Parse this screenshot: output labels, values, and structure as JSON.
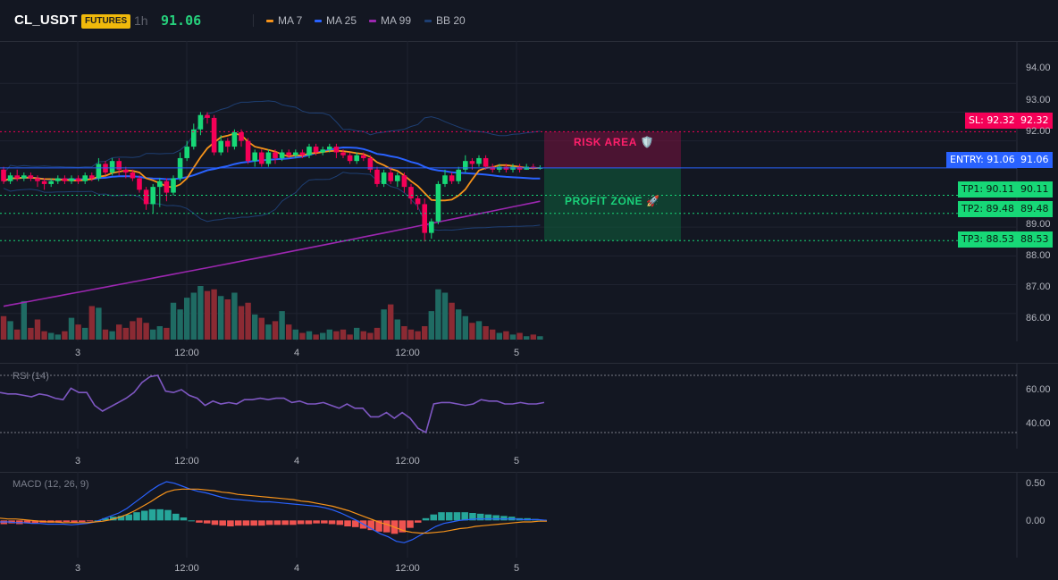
{
  "header": {
    "symbol": "CL_USDT",
    "market_badge": "FUTURES",
    "timeframe": "1h",
    "last_price": "91.06",
    "legend": [
      {
        "label": "MA 7",
        "color": "#f7931a"
      },
      {
        "label": "MA 25",
        "color": "#2962ff"
      },
      {
        "label": "MA 99",
        "color": "#9c27b0"
      },
      {
        "label": "BB 20",
        "color": "#1e3f73"
      }
    ]
  },
  "colors": {
    "background": "#131722",
    "up_candle": "#26a69a",
    "up_bright": "#17d877",
    "down_candle": "#f23645",
    "down_bright": "#f50057",
    "grid": "#1f2330",
    "rsi_line": "#7e57c2",
    "macd_line": "#2962ff",
    "signal_line": "#f7931a",
    "hist_pos": "#26a69a",
    "hist_neg": "#ef5350"
  },
  "price_axis": {
    "range": [
      85.4,
      94.6
    ],
    "ticks": [
      "94.00",
      "93.00",
      "92.00",
      "89.00",
      "88.00",
      "87.00",
      "86.00"
    ]
  },
  "time_axis": {
    "ticks": [
      "3",
      "12:00",
      "4",
      "12:00",
      "5"
    ]
  },
  "trade_levels": {
    "sl": {
      "label": "SL: 92.32",
      "axis_value": "92.32",
      "value": 92.32
    },
    "entry": {
      "label": "ENTRY: 91.06",
      "axis_value": "91.06",
      "value": 91.06
    },
    "tp1": {
      "label": "TP1: 90.11",
      "axis_value": "90.11",
      "value": 90.11
    },
    "tp2": {
      "label": "TP2: 89.48",
      "axis_value": "89.48",
      "value": 89.48
    },
    "tp3": {
      "label": "TP3: 88.53",
      "axis_value": "88.53",
      "value": 88.53
    }
  },
  "zones": {
    "risk_label": "RISK AREA 🛡️",
    "profit_label": "PROFIT ZONE 🚀"
  },
  "rsi": {
    "title": "RSI (14)",
    "range": [
      25,
      75
    ],
    "ticks": [
      "60.00",
      "40.00"
    ],
    "upper_band": 70,
    "lower_band": 30
  },
  "macd": {
    "title": "MACD (12, 26, 9)",
    "range": [
      -0.38,
      0.58
    ],
    "ticks": [
      "0.50",
      "0.00"
    ]
  },
  "chart_data": {
    "type": "candlestick",
    "candles": [
      [
        91.0,
        90.6,
        91.1,
        90.5
      ],
      [
        90.6,
        90.8,
        90.9,
        90.5
      ],
      [
        90.8,
        90.7,
        91.0,
        90.6
      ],
      [
        90.7,
        90.8,
        90.9,
        90.6
      ],
      [
        90.8,
        90.7,
        90.9,
        90.6
      ],
      [
        90.7,
        90.6,
        90.8,
        90.4
      ],
      [
        90.6,
        90.5,
        90.7,
        90.3
      ],
      [
        90.5,
        90.6,
        90.7,
        90.4
      ],
      [
        90.6,
        90.7,
        90.8,
        90.5
      ],
      [
        90.7,
        90.6,
        90.8,
        90.5
      ],
      [
        90.6,
        90.7,
        90.8,
        90.5
      ],
      [
        90.7,
        90.6,
        90.8,
        90.5
      ],
      [
        90.6,
        90.8,
        90.9,
        90.5
      ],
      [
        90.8,
        90.7,
        90.9,
        90.6
      ],
      [
        90.7,
        91.2,
        91.4,
        90.6
      ],
      [
        91.2,
        90.9,
        91.3,
        90.8
      ],
      [
        90.9,
        91.3,
        91.4,
        90.8
      ],
      [
        91.3,
        91.0,
        91.4,
        90.8
      ],
      [
        91.0,
        90.9,
        91.1,
        90.7
      ],
      [
        90.9,
        90.7,
        91.0,
        90.6
      ],
      [
        90.7,
        90.3,
        90.8,
        90.2
      ],
      [
        90.3,
        89.8,
        90.4,
        89.6
      ],
      [
        89.8,
        90.4,
        90.5,
        89.5
      ],
      [
        90.4,
        90.6,
        90.7,
        89.7
      ],
      [
        90.6,
        90.2,
        90.7,
        89.9
      ],
      [
        90.2,
        90.7,
        90.8,
        90.1
      ],
      [
        90.7,
        91.4,
        91.6,
        90.6
      ],
      [
        91.4,
        91.8,
        92.0,
        91.3
      ],
      [
        91.8,
        92.4,
        92.6,
        91.7
      ],
      [
        92.4,
        92.9,
        93.0,
        92.2
      ],
      [
        92.9,
        92.8,
        93.0,
        92.6
      ],
      [
        92.8,
        91.6,
        92.9,
        91.5
      ],
      [
        91.6,
        92.0,
        92.2,
        91.5
      ],
      [
        92.0,
        91.8,
        92.1,
        91.6
      ],
      [
        91.8,
        92.3,
        92.4,
        91.7
      ],
      [
        92.3,
        92.0,
        92.4,
        91.8
      ],
      [
        92.0,
        91.3,
        92.1,
        91.2
      ],
      [
        91.3,
        91.6,
        91.7,
        91.1
      ],
      [
        91.6,
        91.2,
        91.7,
        91.1
      ],
      [
        91.2,
        91.6,
        91.7,
        91.1
      ],
      [
        91.6,
        91.4,
        91.7,
        91.2
      ],
      [
        91.4,
        91.6,
        91.7,
        91.3
      ],
      [
        91.6,
        91.5,
        91.7,
        91.4
      ],
      [
        91.5,
        91.6,
        91.7,
        91.4
      ],
      [
        91.6,
        91.5,
        91.7,
        91.4
      ],
      [
        91.5,
        91.8,
        91.9,
        91.4
      ],
      [
        91.8,
        91.6,
        91.9,
        91.5
      ],
      [
        91.6,
        91.7,
        91.8,
        91.5
      ],
      [
        91.7,
        91.8,
        91.9,
        91.6
      ],
      [
        91.8,
        91.6,
        91.9,
        91.4
      ],
      [
        91.6,
        91.5,
        91.7,
        91.4
      ],
      [
        91.5,
        91.3,
        91.6,
        91.2
      ],
      [
        91.3,
        91.5,
        91.6,
        91.2
      ],
      [
        91.5,
        91.4,
        91.6,
        91.3
      ],
      [
        91.4,
        91.0,
        91.5,
        90.9
      ],
      [
        91.0,
        90.5,
        91.1,
        90.4
      ],
      [
        90.5,
        90.9,
        91.0,
        90.4
      ],
      [
        90.9,
        90.6,
        91.1,
        90.5
      ],
      [
        90.6,
        90.8,
        90.9,
        90.4
      ],
      [
        90.8,
        90.4,
        90.9,
        90.2
      ],
      [
        90.4,
        90.0,
        90.5,
        89.8
      ],
      [
        90.0,
        89.8,
        90.1,
        89.6
      ],
      [
        89.8,
        88.8,
        90.0,
        88.5
      ],
      [
        88.8,
        89.2,
        89.3,
        88.6
      ],
      [
        89.2,
        90.5,
        90.6,
        89.1
      ],
      [
        90.5,
        90.8,
        91.0,
        90.4
      ],
      [
        90.8,
        90.6,
        90.9,
        90.5
      ],
      [
        90.6,
        91.0,
        91.1,
        90.5
      ],
      [
        91.0,
        91.3,
        91.5,
        90.9
      ],
      [
        91.3,
        91.2,
        91.4,
        91.0
      ],
      [
        91.2,
        91.4,
        91.5,
        91.1
      ],
      [
        91.4,
        91.1,
        91.5,
        91.0
      ],
      [
        91.1,
        91.0,
        91.2,
        90.9
      ],
      [
        91.0,
        91.1,
        91.2,
        90.9
      ],
      [
        91.1,
        91.0,
        91.2,
        90.9
      ],
      [
        91.0,
        91.1,
        91.2,
        90.9
      ],
      [
        91.1,
        91.0,
        91.2,
        90.9
      ],
      [
        91.0,
        91.1,
        91.2,
        91.0
      ],
      [
        91.1,
        91.05,
        91.2,
        91.0
      ],
      [
        91.05,
        91.06,
        91.15,
        91.0
      ]
    ],
    "volume": [
      28,
      22,
      12,
      46,
      14,
      24,
      10,
      8,
      6,
      10,
      26,
      18,
      14,
      40,
      38,
      12,
      10,
      18,
      14,
      22,
      26,
      20,
      12,
      16,
      14,
      44,
      36,
      50,
      56,
      64,
      58,
      60,
      52,
      48,
      56,
      40,
      44,
      30,
      26,
      18,
      22,
      34,
      18,
      12,
      8,
      10,
      6,
      8,
      12,
      10,
      12,
      6,
      14,
      10,
      8,
      14,
      36,
      42,
      24,
      16,
      12,
      10,
      16,
      34,
      60,
      56,
      44,
      36,
      28,
      20,
      22,
      16,
      12,
      8,
      10,
      6,
      8,
      4,
      6,
      4
    ],
    "rsi": [
      58,
      57,
      57,
      56,
      55,
      57,
      56,
      54,
      53,
      61,
      58,
      58,
      49,
      45,
      48,
      51,
      54,
      58,
      65,
      69,
      70,
      59,
      58,
      60,
      56,
      54,
      49,
      52,
      50,
      51,
      50,
      53,
      53,
      54,
      53,
      54,
      54,
      51,
      52,
      50,
      50,
      51,
      49,
      47,
      50,
      47,
      47,
      41,
      41,
      44,
      40,
      44,
      40,
      33,
      30,
      50,
      51,
      51,
      50,
      49,
      50,
      53,
      52,
      52,
      50,
      50,
      51,
      50,
      50,
      51
    ],
    "macd": [
      -0.02,
      -0.02,
      -0.03,
      -0.03,
      -0.04,
      -0.04,
      -0.05,
      -0.05,
      -0.05,
      -0.06,
      -0.05,
      -0.04,
      -0.02,
      0.02,
      0.06,
      0.1,
      0.16,
      0.24,
      0.32,
      0.4,
      0.47,
      0.52,
      0.5,
      0.46,
      0.42,
      0.39,
      0.37,
      0.34,
      0.31,
      0.29,
      0.28,
      0.27,
      0.26,
      0.25,
      0.25,
      0.24,
      0.23,
      0.22,
      0.21,
      0.2,
      0.19,
      0.17,
      0.14,
      0.1,
      0.05,
      0.0,
      -0.06,
      -0.12,
      -0.18,
      -0.22,
      -0.28,
      -0.3,
      -0.26,
      -0.2,
      -0.14,
      -0.08,
      -0.04,
      -0.02,
      0.0,
      0.01,
      0.02,
      0.02,
      0.02,
      0.02,
      0.02,
      0.02,
      0.01,
      0.01,
      0.01,
      0.0
    ],
    "signal": [
      0.03,
      0.02,
      0.02,
      0.01,
      0.0,
      -0.01,
      -0.02,
      -0.02,
      -0.03,
      -0.03,
      -0.03,
      -0.03,
      -0.02,
      -0.01,
      0.01,
      0.04,
      0.08,
      0.13,
      0.19,
      0.25,
      0.32,
      0.38,
      0.41,
      0.42,
      0.42,
      0.42,
      0.41,
      0.4,
      0.38,
      0.37,
      0.35,
      0.34,
      0.33,
      0.32,
      0.31,
      0.3,
      0.29,
      0.28,
      0.26,
      0.25,
      0.23,
      0.21,
      0.19,
      0.16,
      0.13,
      0.09,
      0.05,
      0.01,
      -0.03,
      -0.06,
      -0.1,
      -0.14,
      -0.16,
      -0.17,
      -0.17,
      -0.16,
      -0.15,
      -0.13,
      -0.11,
      -0.1,
      -0.08,
      -0.07,
      -0.06,
      -0.05,
      -0.04,
      -0.03,
      -0.02,
      -0.02,
      -0.01,
      -0.01
    ],
    "histogram": [
      -0.05,
      -0.04,
      -0.05,
      -0.04,
      -0.04,
      -0.03,
      -0.03,
      -0.03,
      -0.02,
      -0.03,
      -0.02,
      -0.01,
      0.0,
      0.03,
      0.05,
      0.06,
      0.08,
      0.11,
      0.13,
      0.15,
      0.15,
      0.14,
      0.09,
      0.04,
      0.0,
      -0.03,
      -0.04,
      -0.06,
      -0.07,
      -0.08,
      -0.07,
      -0.07,
      -0.07,
      -0.07,
      -0.06,
      -0.06,
      -0.06,
      -0.06,
      -0.05,
      -0.05,
      -0.04,
      -0.04,
      -0.05,
      -0.06,
      -0.08,
      -0.09,
      -0.11,
      -0.13,
      -0.15,
      -0.16,
      -0.18,
      -0.16,
      -0.1,
      -0.03,
      0.03,
      0.08,
      0.11,
      0.11,
      0.11,
      0.11,
      0.1,
      0.09,
      0.08,
      0.07,
      0.06,
      0.05,
      0.03,
      0.03,
      0.02,
      0.01
    ]
  }
}
